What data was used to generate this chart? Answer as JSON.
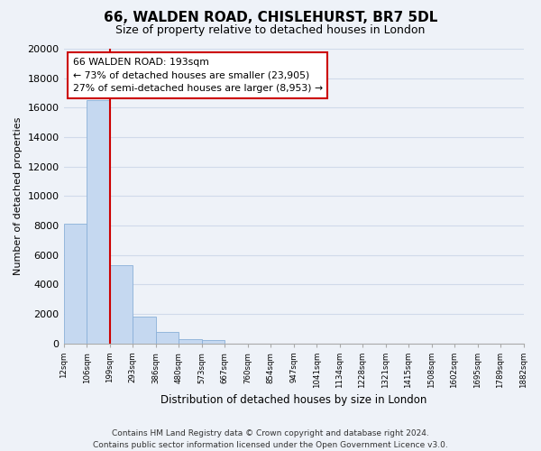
{
  "title": "66, WALDEN ROAD, CHISLEHURST, BR7 5DL",
  "subtitle": "Size of property relative to detached houses in London",
  "xlabel": "Distribution of detached houses by size in London",
  "ylabel": "Number of detached properties",
  "bin_labels": [
    "12sqm",
    "106sqm",
    "199sqm",
    "293sqm",
    "386sqm",
    "480sqm",
    "573sqm",
    "667sqm",
    "760sqm",
    "854sqm",
    "947sqm",
    "1041sqm",
    "1134sqm",
    "1228sqm",
    "1321sqm",
    "1415sqm",
    "1508sqm",
    "1602sqm",
    "1695sqm",
    "1789sqm",
    "1882sqm"
  ],
  "bar_values": [
    8100,
    16500,
    5300,
    1800,
    800,
    300,
    200,
    0,
    0,
    0,
    0,
    0,
    0,
    0,
    0,
    0,
    0,
    0,
    0,
    0
  ],
  "bar_color": "#c5d8f0",
  "bar_edge_color": "#8ab0d8",
  "property_line_x": 2,
  "property_line_color": "#cc0000",
  "ylim": [
    0,
    20000
  ],
  "yticks": [
    0,
    2000,
    4000,
    6000,
    8000,
    10000,
    12000,
    14000,
    16000,
    18000,
    20000
  ],
  "annotation_title": "66 WALDEN ROAD: 193sqm",
  "annotation_line1": "← 73% of detached houses are smaller (23,905)",
  "annotation_line2": "27% of semi-detached houses are larger (8,953) →",
  "annotation_box_facecolor": "#ffffff",
  "annotation_box_edgecolor": "#cc0000",
  "footer_line1": "Contains HM Land Registry data © Crown copyright and database right 2024.",
  "footer_line2": "Contains public sector information licensed under the Open Government Licence v3.0.",
  "fig_facecolor": "#eef2f8",
  "plot_facecolor": "#eef2f8",
  "grid_color": "#d0daea",
  "spine_color": "#aaaaaa"
}
